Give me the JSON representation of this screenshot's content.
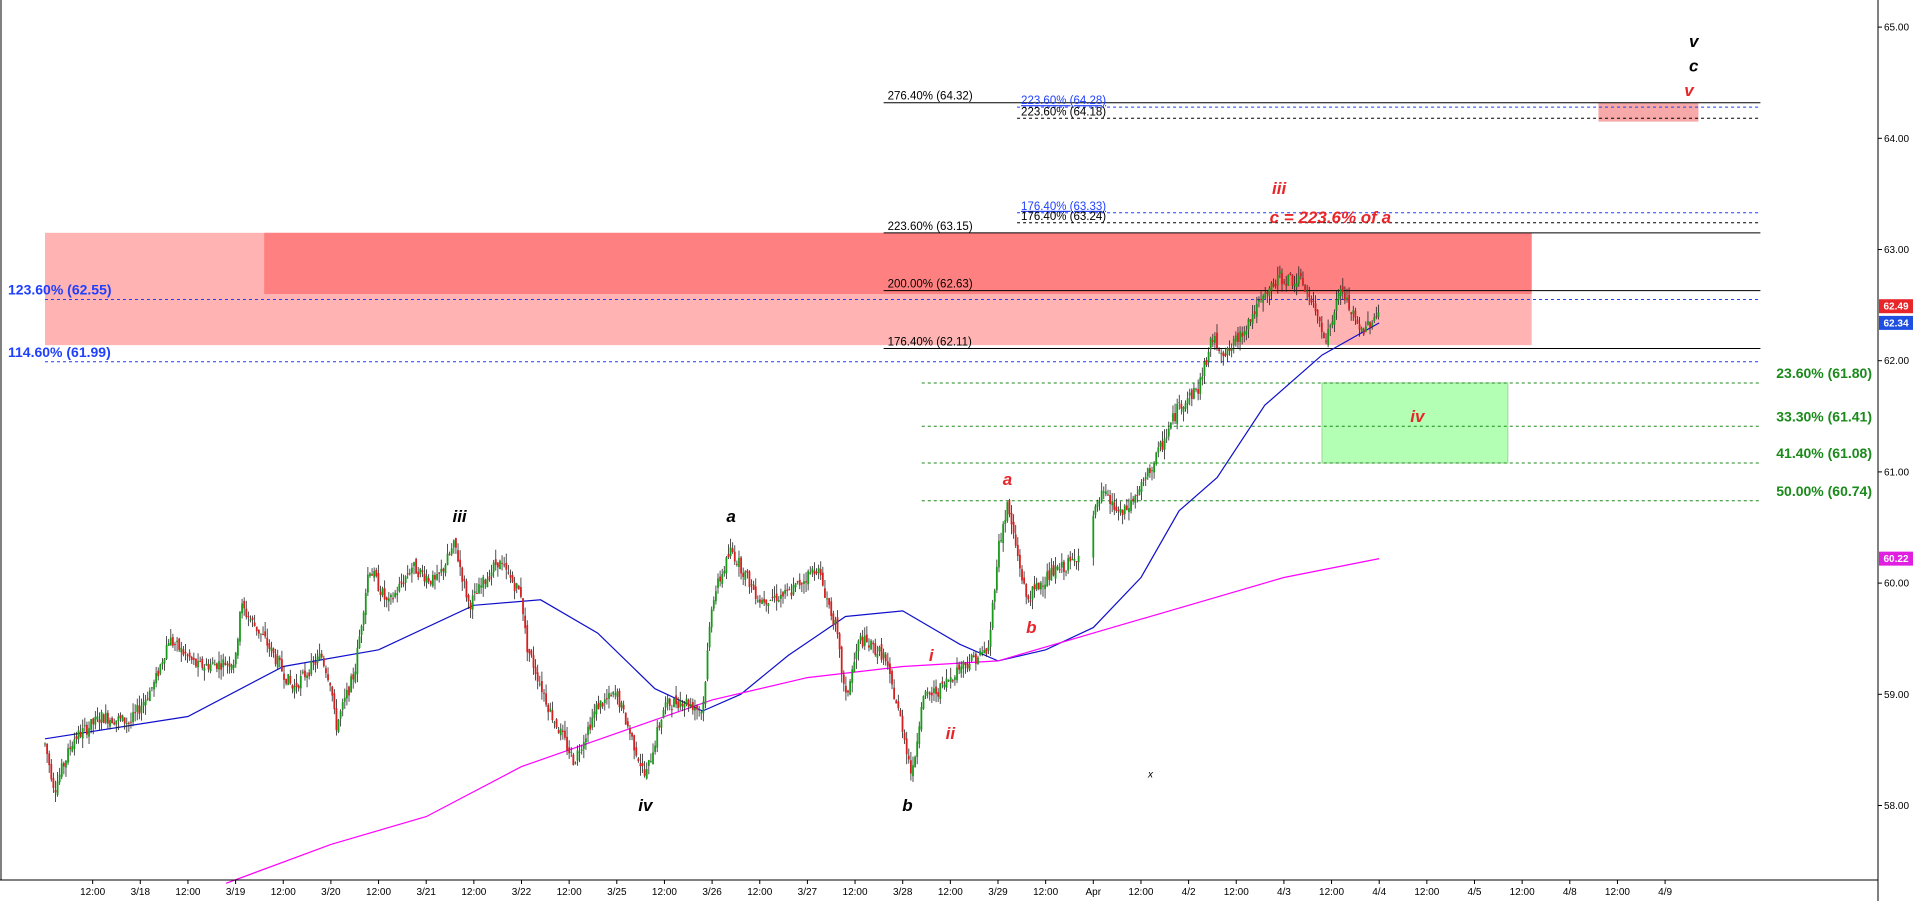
{
  "chart_data": {
    "type": "candlestick",
    "title": "",
    "ylim": [
      57.3,
      65.3
    ],
    "y_ticks": [
      "58.00",
      "59.00",
      "60.00",
      "61.00",
      "62.00",
      "63.00",
      "64.00",
      "65.00"
    ],
    "y_tick_values": [
      58,
      59,
      60,
      61,
      62,
      63,
      64,
      65
    ],
    "x_ticks": [
      {
        "t": 0.5,
        "label": "12:00"
      },
      {
        "t": 1,
        "label": "3/18"
      },
      {
        "t": 1.5,
        "label": "12:00"
      },
      {
        "t": 2,
        "label": "3/19"
      },
      {
        "t": 2.5,
        "label": "12:00"
      },
      {
        "t": 3,
        "label": "3/20"
      },
      {
        "t": 3.5,
        "label": "12:00"
      },
      {
        "t": 4,
        "label": "3/21"
      },
      {
        "t": 4.5,
        "label": "12:00"
      },
      {
        "t": 5,
        "label": "3/22"
      },
      {
        "t": 5.5,
        "label": "12:00"
      },
      {
        "t": 6,
        "label": "3/25"
      },
      {
        "t": 6.5,
        "label": "12:00"
      },
      {
        "t": 7,
        "label": "3/26"
      },
      {
        "t": 7.5,
        "label": "12:00"
      },
      {
        "t": 8,
        "label": "3/27"
      },
      {
        "t": 8.5,
        "label": "12:00"
      },
      {
        "t": 9,
        "label": "3/28"
      },
      {
        "t": 9.5,
        "label": "12:00"
      },
      {
        "t": 10,
        "label": "3/29"
      },
      {
        "t": 10.5,
        "label": "12:00"
      },
      {
        "t": 11,
        "label": "Apr"
      },
      {
        "t": 11.5,
        "label": "12:00"
      },
      {
        "t": 12,
        "label": "4/2"
      },
      {
        "t": 12.5,
        "label": "12:00"
      },
      {
        "t": 13,
        "label": "4/3"
      },
      {
        "t": 13.5,
        "label": "12:00"
      },
      {
        "t": 14,
        "label": "4/4"
      },
      {
        "t": 14.5,
        "label": "12:00"
      },
      {
        "t": 15,
        "label": "4/5"
      },
      {
        "t": 15.5,
        "label": "12:00"
      },
      {
        "t": 16,
        "label": "4/8"
      },
      {
        "t": 16.5,
        "label": "12:00"
      },
      {
        "t": 17,
        "label": "4/9"
      }
    ],
    "price_path": [
      [
        0,
        58.55
      ],
      [
        0.1,
        58.15
      ],
      [
        0.3,
        58.6
      ],
      [
        0.6,
        58.8
      ],
      [
        0.9,
        58.75
      ],
      [
        1.15,
        59.1
      ],
      [
        1.3,
        59.5
      ],
      [
        1.6,
        59.25
      ],
      [
        2,
        59.3
      ],
      [
        2.05,
        59.8
      ],
      [
        2.3,
        59.5
      ],
      [
        2.6,
        59.05
      ],
      [
        2.9,
        59.35
      ],
      [
        3,
        59.1
      ],
      [
        3.05,
        58.7
      ],
      [
        3.25,
        59.2
      ],
      [
        3.4,
        60.15
      ],
      [
        3.6,
        59.8
      ],
      [
        3.85,
        60.15
      ],
      [
        4.1,
        60.0
      ],
      [
        4.3,
        60.35
      ],
      [
        4.45,
        59.8
      ],
      [
        4.75,
        60.2
      ],
      [
        5,
        59.9
      ],
      [
        5.05,
        59.45
      ],
      [
        5.3,
        58.85
      ],
      [
        5.55,
        58.4
      ],
      [
        5.8,
        58.9
      ],
      [
        6.0,
        59.0
      ],
      [
        6.3,
        58.25
      ],
      [
        6.5,
        58.9
      ],
      [
        6.7,
        58.95
      ],
      [
        6.9,
        58.85
      ],
      [
        7.0,
        59.85
      ],
      [
        7.2,
        60.3
      ],
      [
        7.5,
        59.85
      ],
      [
        7.8,
        59.9
      ],
      [
        8.1,
        60.15
      ],
      [
        8.3,
        59.6
      ],
      [
        8.4,
        58.95
      ],
      [
        8.55,
        59.5
      ],
      [
        8.8,
        59.35
      ],
      [
        9.0,
        58.7
      ],
      [
        9.1,
        58.25
      ],
      [
        9.2,
        58.95
      ],
      [
        9.4,
        59.05
      ],
      [
        9.6,
        59.25
      ],
      [
        9.9,
        59.4
      ],
      [
        10.0,
        60.3
      ],
      [
        10.1,
        60.7
      ],
      [
        10.3,
        59.85
      ],
      [
        10.5,
        60.05
      ],
      [
        10.8,
        60.2
      ],
      [
        11.1,
        60.8
      ],
      [
        11.3,
        60.6
      ],
      [
        11.5,
        60.85
      ],
      [
        11.7,
        61.2
      ],
      [
        11.9,
        61.6
      ],
      [
        12.1,
        61.75
      ],
      [
        12.25,
        62.2
      ],
      [
        12.4,
        62.05
      ],
      [
        12.7,
        62.45
      ],
      [
        12.95,
        62.75
      ],
      [
        13.2,
        62.7
      ],
      [
        13.45,
        62.2
      ],
      [
        13.6,
        62.65
      ],
      [
        13.8,
        62.25
      ],
      [
        14.0,
        62.45
      ]
    ],
    "moving_averages": [
      {
        "color": "#1010cc",
        "points": [
          [
            0,
            58.6
          ],
          [
            1.5,
            58.8
          ],
          [
            2.5,
            59.25
          ],
          [
            3.5,
            59.4
          ],
          [
            4.5,
            59.8
          ],
          [
            5.2,
            59.85
          ],
          [
            5.8,
            59.55
          ],
          [
            6.4,
            59.05
          ],
          [
            6.9,
            58.85
          ],
          [
            7.3,
            59.0
          ],
          [
            7.8,
            59.35
          ],
          [
            8.4,
            59.7
          ],
          [
            9.0,
            59.75
          ],
          [
            9.6,
            59.45
          ],
          [
            10.0,
            59.3
          ],
          [
            10.5,
            59.4
          ],
          [
            11.0,
            59.6
          ],
          [
            11.5,
            60.05
          ],
          [
            11.9,
            60.65
          ],
          [
            12.3,
            60.95
          ],
          [
            12.8,
            61.6
          ],
          [
            13.4,
            62.05
          ],
          [
            14.0,
            62.34
          ]
        ]
      },
      {
        "color": "#ff00ff",
        "points": [
          [
            1.9,
            57.3
          ],
          [
            3.0,
            57.65
          ],
          [
            4.0,
            57.9
          ],
          [
            5.0,
            58.35
          ],
          [
            6.0,
            58.65
          ],
          [
            7.0,
            58.95
          ],
          [
            8.0,
            59.15
          ],
          [
            9.0,
            59.25
          ],
          [
            10.0,
            59.3
          ],
          [
            11.0,
            59.55
          ],
          [
            12.0,
            59.8
          ],
          [
            13.0,
            60.05
          ],
          [
            14.0,
            60.22
          ]
        ]
      }
    ],
    "price_badges": [
      {
        "label": "62.49",
        "value": 62.49,
        "color": "#e8262a"
      },
      {
        "label": "62.34",
        "value": 62.34,
        "color": "#1f4fe0"
      },
      {
        "label": "60.22",
        "value": 60.22,
        "color": "#e020e0"
      }
    ],
    "zones": [
      {
        "name": "resistance-zone-wide",
        "t0": 0,
        "t1": 15.6,
        "y0": 62.14,
        "y1": 63.15,
        "color": "#ffb3b3"
      },
      {
        "name": "resistance-zone-core",
        "t0": 2.3,
        "t1": 15.6,
        "y0": 62.6,
        "y1": 63.15,
        "color": "#ff8080"
      },
      {
        "name": "target-zone-v",
        "t0": 16.3,
        "t1": 17.35,
        "y0": 64.15,
        "y1": 64.32,
        "color": "#f7a8a8"
      },
      {
        "name": "support-zone-iv",
        "t0": 13.4,
        "t1": 15.35,
        "y0": 61.08,
        "y1": 61.8,
        "color": "#b3ffb3"
      }
    ],
    "levels": [
      {
        "label": "276.40% (64.32)",
        "value": 64.32,
        "t0": 8.8,
        "t1": 18,
        "color": "#000000",
        "dash": false,
        "size": "small"
      },
      {
        "label": "223.60% (64.28)",
        "value": 64.28,
        "t0": 10.2,
        "t1": 18,
        "color": "#1f3fff",
        "dash": true,
        "size": "small"
      },
      {
        "label": "223.60% (64.18)",
        "value": 64.18,
        "t0": 10.2,
        "t1": 18,
        "color": "#000000",
        "dash": true,
        "size": "small"
      },
      {
        "label": "176.40% (63.33)",
        "value": 63.33,
        "t0": 10.2,
        "t1": 18,
        "color": "#1f3fff",
        "dash": true,
        "size": "small"
      },
      {
        "label": "176.40% (63.24)",
        "value": 63.24,
        "t0": 10.2,
        "t1": 18,
        "color": "#000000",
        "dash": true,
        "size": "small"
      },
      {
        "label": "223.60% (63.15)",
        "value": 63.15,
        "t0": 8.8,
        "t1": 18,
        "color": "#000000",
        "dash": false,
        "size": "small"
      },
      {
        "label": "200.00% (62.63)",
        "value": 62.63,
        "t0": 8.8,
        "t1": 18,
        "color": "#000000",
        "dash": false,
        "size": "small"
      },
      {
        "label": "176.40% (62.11)",
        "value": 62.11,
        "t0": 8.8,
        "t1": 18,
        "color": "#000000",
        "dash": false,
        "size": "small"
      },
      {
        "label": "123.60% (62.55)",
        "value": 62.55,
        "t0": 0,
        "t1": 18,
        "color": "#1f3fff",
        "dash": true,
        "size": "big",
        "anchor": "left"
      },
      {
        "label": "114.60% (61.99)",
        "value": 61.99,
        "t0": 0,
        "t1": 18,
        "color": "#1f3fff",
        "dash": true,
        "size": "big",
        "anchor": "left"
      },
      {
        "label": "23.60% (61.80)",
        "value": 61.8,
        "t0": 9.2,
        "t1": 18,
        "color": "#1a8a1a",
        "dash": true,
        "size": "big",
        "anchor": "right"
      },
      {
        "label": "33.30% (61.41)",
        "value": 61.41,
        "t0": 9.2,
        "t1": 18,
        "color": "#1a8a1a",
        "dash": true,
        "size": "big",
        "anchor": "right"
      },
      {
        "label": "41.40% (61.08)",
        "value": 61.08,
        "t0": 9.2,
        "t1": 18,
        "color": "#1a8a1a",
        "dash": true,
        "size": "big",
        "anchor": "right"
      },
      {
        "label": "50.00% (60.74)",
        "value": 60.74,
        "t0": 9.2,
        "t1": 18,
        "color": "#1a8a1a",
        "dash": true,
        "size": "big",
        "anchor": "right"
      }
    ],
    "wave_labels": [
      {
        "text": "iii",
        "t": 4.35,
        "y": 60.55,
        "color": "#000000"
      },
      {
        "text": "iv",
        "t": 6.3,
        "y": 57.95,
        "color": "#000000"
      },
      {
        "text": "a",
        "t": 7.2,
        "y": 60.55,
        "color": "#000000"
      },
      {
        "text": "b",
        "t": 9.05,
        "y": 57.95,
        "color": "#000000"
      },
      {
        "text": "i",
        "t": 9.3,
        "y": 59.3,
        "color": "#e8262a"
      },
      {
        "text": "ii",
        "t": 9.5,
        "y": 58.6,
        "color": "#e8262a"
      },
      {
        "text": "a",
        "t": 10.1,
        "y": 60.88,
        "color": "#e8262a"
      },
      {
        "text": "b",
        "t": 10.35,
        "y": 59.55,
        "color": "#e8262a"
      },
      {
        "text": "iii",
        "t": 12.95,
        "y": 63.5,
        "color": "#e8262a"
      },
      {
        "text": "iv",
        "t": 14.4,
        "y": 61.45,
        "color": "#e8262a"
      },
      {
        "text": "v",
        "t": 17.25,
        "y": 64.38,
        "color": "#e8262a"
      },
      {
        "text": "c",
        "t": 17.3,
        "y": 64.6,
        "color": "#000000"
      },
      {
        "text": "v",
        "t": 17.3,
        "y": 64.82,
        "color": "#000000"
      }
    ],
    "annotations": [
      {
        "text": "c = 223.6% of a",
        "t": 12.85,
        "y": 63.24,
        "color": "#e8262a"
      },
      {
        "text": "x",
        "t": 11.6,
        "y": 58.25,
        "color": "#000000"
      }
    ]
  }
}
